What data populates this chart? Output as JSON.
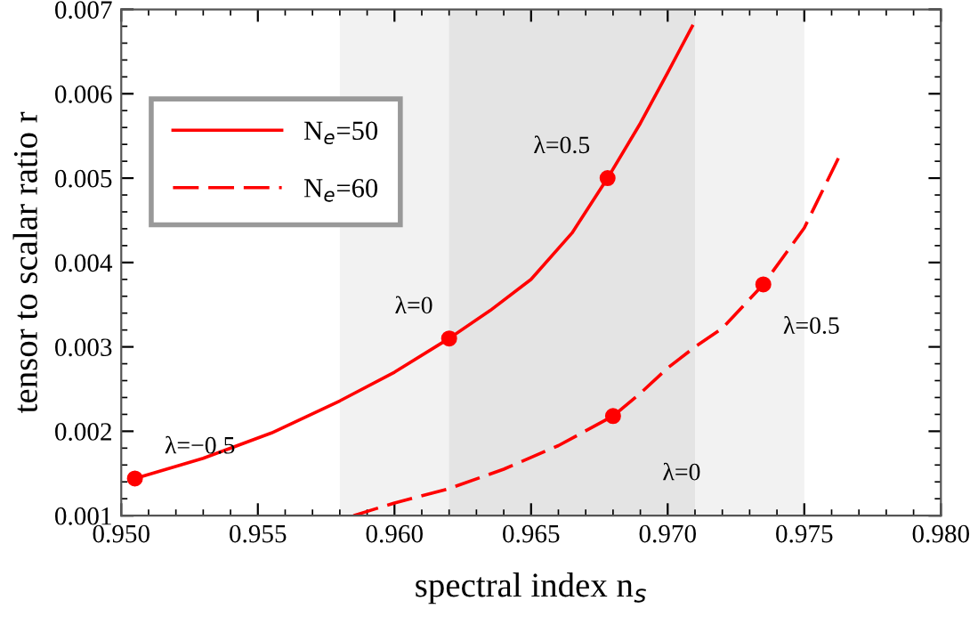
{
  "chart_data": {
    "type": "line",
    "xlabel": "spectral index n$_{s}$",
    "ylabel": "tensor to scalar ratio r",
    "series": [
      {
        "name": "N$_{e}$=50",
        "color": "#ff0000",
        "line_style": "solid",
        "x": [
          0.9505,
          0.953,
          0.9555,
          0.958,
          0.96,
          0.962,
          0.9635,
          0.965,
          0.9665,
          0.9678,
          0.969,
          0.97,
          0.9709
        ],
        "values": [
          0.00144,
          0.00168,
          0.00198,
          0.00236,
          0.0027,
          0.0031,
          0.00343,
          0.0038,
          0.00435,
          0.005,
          0.00565,
          0.00625,
          0.0068
        ]
      },
      {
        "name": "N$_{e}$=60",
        "color": "#ff0000",
        "line_style": "dashed",
        "x": [
          0.9585,
          0.96,
          0.962,
          0.964,
          0.966,
          0.968,
          0.969,
          0.97,
          0.971,
          0.972,
          0.9735,
          0.975,
          0.9763
        ],
        "values": [
          0.001,
          0.00115,
          0.00132,
          0.00155,
          0.00183,
          0.00218,
          0.00245,
          0.00275,
          0.003,
          0.00322,
          0.00374,
          0.00441,
          0.00527
        ]
      },
      {
        "type": "scatter",
        "color": "#ff0000",
        "marker": "circle",
        "x": [
          0.9505,
          0.962,
          0.9678,
          0.968,
          0.9735
        ],
        "values": [
          0.00144,
          0.0031,
          0.005,
          0.00218,
          0.00374
        ]
      }
    ],
    "annotations": [
      {
        "text": "λ=−0.5",
        "x": 0.9505,
        "y": 0.00144
      },
      {
        "text": "λ=0",
        "x": 0.962,
        "y": 0.0031
      },
      {
        "text": "λ=0.5",
        "x": 0.9678,
        "y": 0.005
      },
      {
        "text": "λ=0",
        "x": 0.968,
        "y": 0.00218
      },
      {
        "text": "λ=0.5",
        "x": 0.9735,
        "y": 0.00374
      }
    ],
    "bands": [
      {
        "axis": "x",
        "from": 0.958,
        "to": 0.975,
        "color": "#f2f2f2"
      },
      {
        "axis": "x",
        "from": 0.962,
        "to": 0.971,
        "color": "#e4e4e4"
      }
    ],
    "xlim": [
      0.95,
      0.98
    ],
    "xticks": [
      {
        "value": 0.95,
        "label": "0.950"
      },
      0.955,
      {
        "value": 0.96,
        "label": "0.960"
      },
      0.965,
      {
        "value": 0.97,
        "label": "0.970"
      },
      0.975,
      {
        "value": 0.98,
        "label": "0.980"
      }
    ],
    "ylim": [
      0.001,
      0.007
    ],
    "yticks": [
      0.001,
      0.002,
      0.003,
      0.004,
      0.005,
      0.006,
      0.007
    ],
    "legend": "top left",
    "grid": false
  }
}
